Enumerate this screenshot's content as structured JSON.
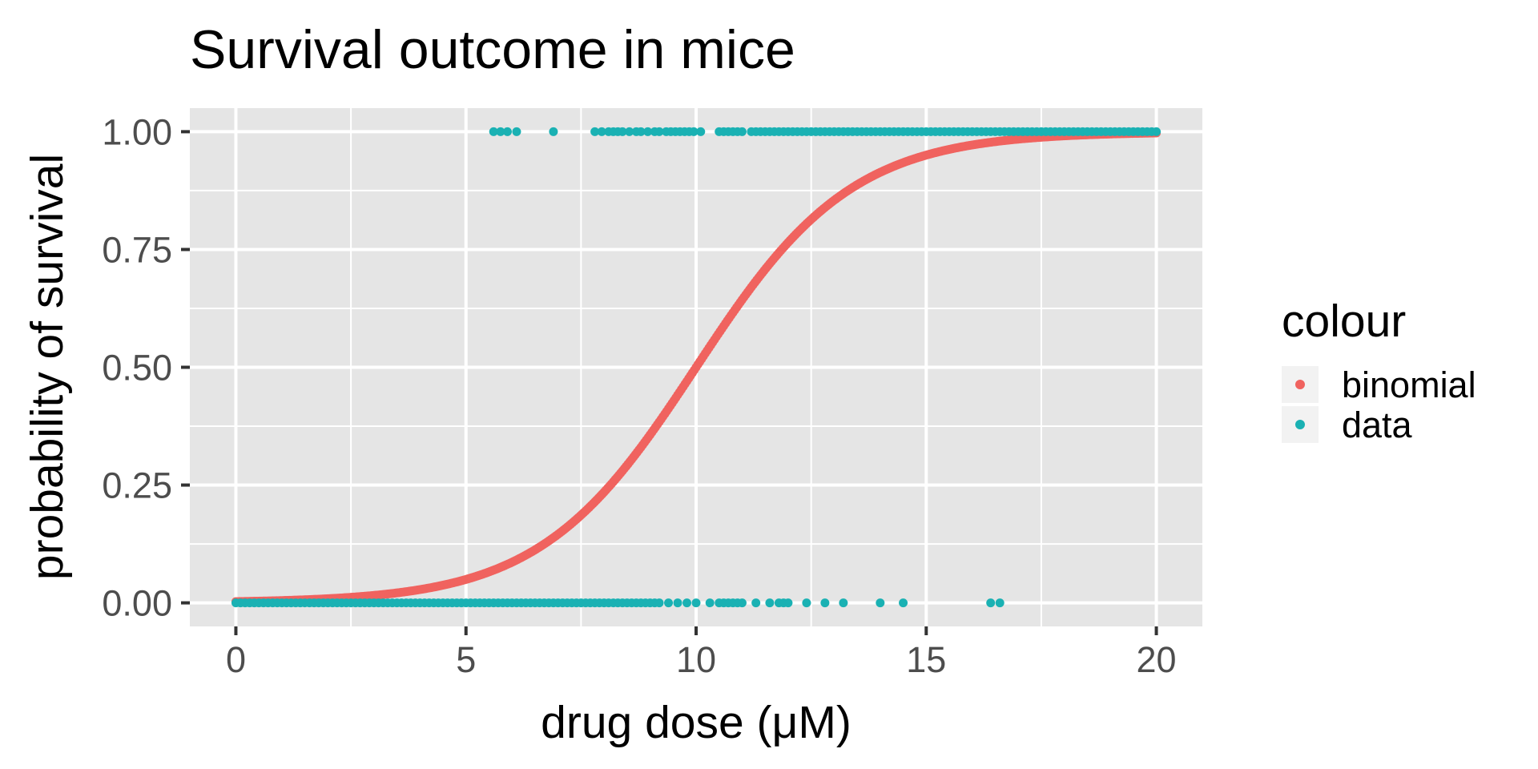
{
  "chart_data": {
    "type": "scatter",
    "title": "Survival outcome in mice",
    "xlabel": "drug dose (μM)",
    "ylabel": "probability of survival",
    "xlim": [
      -1,
      21
    ],
    "ylim": [
      -0.05,
      1.05
    ],
    "x_ticks": [
      0,
      5,
      10,
      15,
      20
    ],
    "x_tick_labels": [
      "0",
      "5",
      "10",
      "15",
      "20"
    ],
    "y_ticks": [
      0,
      0.25,
      0.5,
      0.75,
      1
    ],
    "y_tick_labels": [
      "0.00",
      "0.25",
      "0.50",
      "0.75",
      "1.00"
    ],
    "grid": true,
    "legend": {
      "title": "colour",
      "position": "right"
    },
    "colors": {
      "panel": "#e5e5e5",
      "grid": "#ffffff",
      "binomial": "#f0635f",
      "data": "#1ab1b3",
      "tick": "#333333"
    },
    "series": [
      {
        "name": "binomial",
        "color": "#f0635f",
        "curve": {
          "form": "logistic",
          "midpoint": 10,
          "slope": 0.59
        }
      },
      {
        "name": "data",
        "color": "#1ab1b3",
        "points": [
          [
            0.0,
            0
          ],
          [
            0.1,
            0
          ],
          [
            0.2,
            0
          ],
          [
            0.3,
            0
          ],
          [
            0.4,
            0
          ],
          [
            0.5,
            0
          ],
          [
            0.6,
            0
          ],
          [
            0.7,
            0
          ],
          [
            0.8,
            0
          ],
          [
            0.9,
            0
          ],
          [
            1.0,
            0
          ],
          [
            1.1,
            0
          ],
          [
            1.2,
            0
          ],
          [
            1.3,
            0
          ],
          [
            1.4,
            0
          ],
          [
            1.5,
            0
          ],
          [
            1.6,
            0
          ],
          [
            1.7,
            0
          ],
          [
            1.8,
            0
          ],
          [
            1.9,
            0
          ],
          [
            2.0,
            0
          ],
          [
            2.1,
            0
          ],
          [
            2.2,
            0
          ],
          [
            2.3,
            0
          ],
          [
            2.4,
            0
          ],
          [
            2.5,
            0
          ],
          [
            2.6,
            0
          ],
          [
            2.7,
            0
          ],
          [
            2.8,
            0
          ],
          [
            2.9,
            0
          ],
          [
            3.0,
            0
          ],
          [
            3.1,
            0
          ],
          [
            3.2,
            0
          ],
          [
            3.3,
            0
          ],
          [
            3.4,
            0
          ],
          [
            3.5,
            0
          ],
          [
            3.6,
            0
          ],
          [
            3.7,
            0
          ],
          [
            3.8,
            0
          ],
          [
            3.9,
            0
          ],
          [
            4.0,
            0
          ],
          [
            4.1,
            0
          ],
          [
            4.2,
            0
          ],
          [
            4.3,
            0
          ],
          [
            4.4,
            0
          ],
          [
            4.5,
            0
          ],
          [
            4.6,
            0
          ],
          [
            4.7,
            0
          ],
          [
            4.8,
            0
          ],
          [
            4.9,
            0
          ],
          [
            5.0,
            0
          ],
          [
            5.1,
            0
          ],
          [
            5.2,
            0
          ],
          [
            5.3,
            0
          ],
          [
            5.4,
            0
          ],
          [
            5.5,
            0
          ],
          [
            5.6,
            0
          ],
          [
            5.7,
            0
          ],
          [
            5.8,
            0
          ],
          [
            5.9,
            0
          ],
          [
            6.0,
            0
          ],
          [
            6.1,
            0
          ],
          [
            6.2,
            0
          ],
          [
            6.3,
            0
          ],
          [
            6.4,
            0
          ],
          [
            6.5,
            0
          ],
          [
            6.6,
            0
          ],
          [
            6.7,
            0
          ],
          [
            6.8,
            0
          ],
          [
            6.9,
            0
          ],
          [
            7.0,
            0
          ],
          [
            7.1,
            0
          ],
          [
            7.2,
            0
          ],
          [
            7.3,
            0
          ],
          [
            7.4,
            0
          ],
          [
            7.5,
            0
          ],
          [
            7.6,
            0
          ],
          [
            7.7,
            0
          ],
          [
            7.8,
            0
          ],
          [
            7.9,
            0
          ],
          [
            8.0,
            0
          ],
          [
            8.1,
            0
          ],
          [
            8.2,
            0
          ],
          [
            8.3,
            0
          ],
          [
            8.4,
            0
          ],
          [
            8.5,
            0
          ],
          [
            8.6,
            0
          ],
          [
            8.7,
            0
          ],
          [
            8.8,
            0
          ],
          [
            8.9,
            0
          ],
          [
            9.0,
            0
          ],
          [
            9.1,
            0
          ],
          [
            9.2,
            0
          ],
          [
            9.4,
            0
          ],
          [
            9.6,
            0
          ],
          [
            9.8,
            0
          ],
          [
            10.0,
            0
          ],
          [
            10.3,
            0
          ],
          [
            10.5,
            0
          ],
          [
            10.6,
            0
          ],
          [
            10.7,
            0
          ],
          [
            10.8,
            0
          ],
          [
            10.9,
            0
          ],
          [
            11.0,
            0
          ],
          [
            11.3,
            0
          ],
          [
            11.6,
            0
          ],
          [
            11.8,
            0
          ],
          [
            11.9,
            0
          ],
          [
            12.0,
            0
          ],
          [
            12.4,
            0
          ],
          [
            12.8,
            0
          ],
          [
            13.2,
            0
          ],
          [
            14.0,
            0
          ],
          [
            14.5,
            0
          ],
          [
            16.4,
            0
          ],
          [
            16.6,
            0
          ],
          [
            5.6,
            1
          ],
          [
            5.75,
            1
          ],
          [
            5.9,
            1
          ],
          [
            6.1,
            1
          ],
          [
            6.9,
            1
          ],
          [
            7.8,
            1
          ],
          [
            7.95,
            1
          ],
          [
            8.1,
            1
          ],
          [
            8.2,
            1
          ],
          [
            8.3,
            1
          ],
          [
            8.4,
            1
          ],
          [
            8.55,
            1
          ],
          [
            8.7,
            1
          ],
          [
            8.8,
            1
          ],
          [
            8.95,
            1
          ],
          [
            9.1,
            1
          ],
          [
            9.2,
            1
          ],
          [
            9.35,
            1
          ],
          [
            9.45,
            1
          ],
          [
            9.55,
            1
          ],
          [
            9.65,
            1
          ],
          [
            9.75,
            1
          ],
          [
            9.85,
            1
          ],
          [
            9.95,
            1
          ],
          [
            10.1,
            1
          ],
          [
            10.5,
            1
          ],
          [
            10.6,
            1
          ],
          [
            10.7,
            1
          ],
          [
            10.8,
            1
          ],
          [
            10.9,
            1
          ],
          [
            11.0,
            1
          ],
          [
            11.2,
            1
          ],
          [
            11.3,
            1
          ],
          [
            11.4,
            1
          ],
          [
            11.5,
            1
          ],
          [
            11.6,
            1
          ],
          [
            11.7,
            1
          ],
          [
            11.8,
            1
          ],
          [
            11.9,
            1
          ],
          [
            12.0,
            1
          ],
          [
            12.1,
            1
          ],
          [
            12.2,
            1
          ],
          [
            12.3,
            1
          ],
          [
            12.4,
            1
          ],
          [
            12.5,
            1
          ],
          [
            12.6,
            1
          ],
          [
            12.7,
            1
          ],
          [
            12.8,
            1
          ],
          [
            12.9,
            1
          ],
          [
            13.0,
            1
          ],
          [
            13.1,
            1
          ],
          [
            13.2,
            1
          ],
          [
            13.3,
            1
          ],
          [
            13.4,
            1
          ],
          [
            13.5,
            1
          ],
          [
            13.6,
            1
          ],
          [
            13.7,
            1
          ],
          [
            13.8,
            1
          ],
          [
            13.9,
            1
          ],
          [
            14.0,
            1
          ],
          [
            14.1,
            1
          ],
          [
            14.2,
            1
          ],
          [
            14.3,
            1
          ],
          [
            14.4,
            1
          ],
          [
            14.5,
            1
          ],
          [
            14.6,
            1
          ],
          [
            14.7,
            1
          ],
          [
            14.8,
            1
          ],
          [
            14.9,
            1
          ],
          [
            15.0,
            1
          ],
          [
            15.1,
            1
          ],
          [
            15.2,
            1
          ],
          [
            15.3,
            1
          ],
          [
            15.4,
            1
          ],
          [
            15.5,
            1
          ],
          [
            15.6,
            1
          ],
          [
            15.7,
            1
          ],
          [
            15.8,
            1
          ],
          [
            15.9,
            1
          ],
          [
            16.0,
            1
          ],
          [
            16.1,
            1
          ],
          [
            16.2,
            1
          ],
          [
            16.3,
            1
          ],
          [
            16.4,
            1
          ],
          [
            16.5,
            1
          ],
          [
            16.6,
            1
          ],
          [
            16.7,
            1
          ],
          [
            16.8,
            1
          ],
          [
            16.9,
            1
          ],
          [
            17.0,
            1
          ],
          [
            17.1,
            1
          ],
          [
            17.2,
            1
          ],
          [
            17.3,
            1
          ],
          [
            17.4,
            1
          ],
          [
            17.5,
            1
          ],
          [
            17.6,
            1
          ],
          [
            17.7,
            1
          ],
          [
            17.8,
            1
          ],
          [
            17.9,
            1
          ],
          [
            18.0,
            1
          ],
          [
            18.1,
            1
          ],
          [
            18.2,
            1
          ],
          [
            18.3,
            1
          ],
          [
            18.4,
            1
          ],
          [
            18.5,
            1
          ],
          [
            18.6,
            1
          ],
          [
            18.7,
            1
          ],
          [
            18.8,
            1
          ],
          [
            18.9,
            1
          ],
          [
            19.0,
            1
          ],
          [
            19.1,
            1
          ],
          [
            19.2,
            1
          ],
          [
            19.3,
            1
          ],
          [
            19.4,
            1
          ],
          [
            19.5,
            1
          ],
          [
            19.6,
            1
          ],
          [
            19.7,
            1
          ],
          [
            19.8,
            1
          ],
          [
            19.9,
            1
          ],
          [
            20.0,
            1
          ]
        ]
      }
    ]
  }
}
